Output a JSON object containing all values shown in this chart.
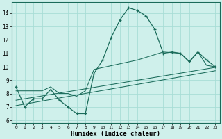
{
  "xlabel": "Humidex (Indice chaleur)",
  "bg_color": "#cff0eb",
  "line_color": "#1a6b5a",
  "grid_color": "#a8ddd6",
  "ylim": [
    5.8,
    14.8
  ],
  "xlim": [
    -0.5,
    23.5
  ],
  "yticks": [
    6,
    7,
    8,
    9,
    10,
    11,
    12,
    13,
    14
  ],
  "xticks": [
    0,
    1,
    2,
    3,
    4,
    5,
    6,
    7,
    8,
    9,
    10,
    11,
    12,
    13,
    14,
    15,
    16,
    17,
    18,
    19,
    20,
    21,
    22,
    23
  ],
  "main_x": [
    0,
    1,
    2,
    3,
    4,
    5,
    6,
    7,
    8,
    9,
    10,
    11,
    12,
    13,
    14,
    15,
    16,
    17,
    18,
    19,
    20,
    21,
    22,
    23
  ],
  "main_y": [
    8.5,
    7.0,
    7.6,
    7.6,
    8.3,
    7.5,
    7.0,
    6.5,
    6.5,
    9.5,
    10.5,
    12.2,
    13.5,
    14.4,
    14.2,
    13.8,
    12.8,
    11.0,
    11.1,
    11.0,
    10.4,
    11.1,
    10.5,
    10.0
  ],
  "line2_x": [
    0,
    3,
    4,
    5,
    6,
    7,
    8,
    9,
    14,
    17,
    18,
    19,
    20,
    21,
    22,
    23
  ],
  "line2_y": [
    8.2,
    8.2,
    8.5,
    8.0,
    8.0,
    7.8,
    8.2,
    9.8,
    10.5,
    11.1,
    11.05,
    11.0,
    10.35,
    11.1,
    10.1,
    10.0
  ],
  "line3_x": [
    0,
    23
  ],
  "line3_y": [
    7.5,
    9.95
  ],
  "line4_x": [
    0,
    23
  ],
  "line4_y": [
    7.1,
    9.7
  ]
}
